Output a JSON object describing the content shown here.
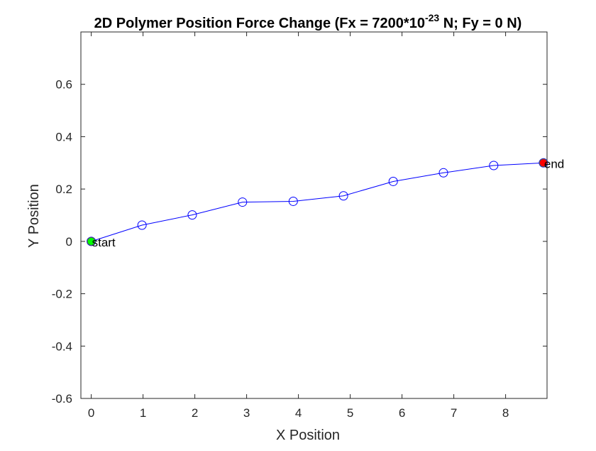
{
  "chart_data": {
    "type": "line",
    "title": {
      "main": "2D Polymer Position Force Change (Fx = 7200*10",
      "superscript": "-23",
      "tail": " N; Fy = 0 N)"
    },
    "xlabel": "X Position",
    "ylabel": "Y Position",
    "xlim": [
      -0.2,
      8.8
    ],
    "ylim": [
      -0.6,
      0.8
    ],
    "xticks": [
      0,
      1,
      2,
      3,
      4,
      5,
      6,
      7,
      8
    ],
    "xtick_labels": [
      "0",
      "1",
      "2",
      "3",
      "4",
      "5",
      "6",
      "7",
      "8"
    ],
    "yticks": [
      -0.6,
      -0.4,
      -0.2,
      0,
      0.2,
      0.4,
      0.6
    ],
    "ytick_labels": [
      "-0.6",
      "-0.4",
      "-0.2",
      "0",
      "0.2",
      "0.4",
      "0.6"
    ],
    "grid": false,
    "series": [
      {
        "marker": "circle-open",
        "color": "#0000ff",
        "x": [
          0,
          0.98,
          1.95,
          2.92,
          3.9,
          4.87,
          5.83,
          6.8,
          7.77,
          8.73
        ],
        "y": [
          0,
          0.062,
          0.101,
          0.15,
          0.153,
          0.174,
          0.229,
          0.262,
          0.29,
          0.3
        ]
      }
    ],
    "annotations": [
      {
        "label": "start",
        "x": 0,
        "y": 0,
        "marker_color": "#00ff00"
      },
      {
        "label": "end",
        "x": 8.73,
        "y": 0.3,
        "marker_color": "#ff0000"
      }
    ]
  }
}
